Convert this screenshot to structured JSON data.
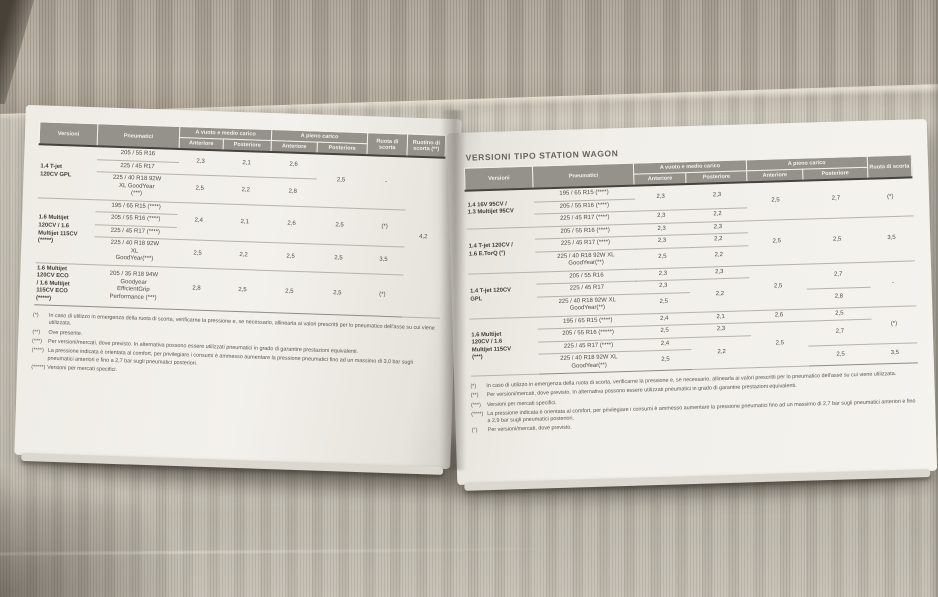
{
  "colors": {
    "table_header_bg": "#95928b",
    "page_paper": "#f1efe9",
    "fabric_light": "#ccc6ba",
    "fabric_dark_band": "#aaa194"
  },
  "left_page": {
    "table": {
      "head": [
        [
          {
            "t": "Versioni",
            "rs": 2
          },
          {
            "t": "Pneumatici",
            "rs": 2
          },
          {
            "t": "A vuoto e medio carico",
            "cs": 2
          },
          {
            "t": "A pieno carico",
            "cs": 2
          },
          {
            "t": "Ruota di scorta",
            "rs": 2
          },
          {
            "t": "Ruotino di scorta (**)",
            "rs": 2
          }
        ],
        [
          {
            "t": "Anteriore"
          },
          {
            "t": "Posteriore"
          },
          {
            "t": "Anteriore"
          },
          {
            "t": "Posteriore"
          }
        ]
      ],
      "body": [
        [
          {
            "t": "1.4 T-jet\n120CV GPL",
            "rs": 3,
            "c": "version"
          },
          {
            "t": "205 / 55 R16",
            "c": "tire"
          },
          {
            "t": "2,3",
            "rs": 2
          },
          {
            "t": "2,1",
            "rs": 2
          },
          {
            "t": "2,6",
            "rs": 2
          },
          {
            "t": "2,5",
            "rs": 3
          },
          {
            "t": "-",
            "rs": 3
          },
          {
            "t": "4,2",
            "rs": 8
          }
        ],
        [
          {
            "t": "225 / 45 R17",
            "c": "tire"
          }
        ],
        [
          {
            "t": "225 / 40 R18 92W\nXL GoodYear\n(***)",
            "c": "tire"
          },
          {
            "t": "2,5"
          },
          {
            "t": "2,2"
          },
          {
            "t": "2,8"
          }
        ],
        [
          {
            "t": "1.6 Multijet\n120CV / 1.6\nMultijet 115CV\n(*****)",
            "rs": 4,
            "c": "version"
          },
          {
            "t": "195 / 65 R15 (****)",
            "c": "tire"
          },
          {
            "t": "2,4",
            "rs": 3
          },
          {
            "t": "2,1",
            "rs": 3
          },
          {
            "t": "2,6",
            "rs": 3
          },
          {
            "t": "2,5",
            "rs": 3
          },
          {
            "t": "(*)",
            "rs": 3
          }
        ],
        [
          {
            "t": "205 / 55 R16 (****)",
            "c": "tire"
          }
        ],
        [
          {
            "t": "225 / 45 R17 (****)",
            "c": "tire"
          }
        ],
        [
          {
            "t": "225 / 40 R18 92W\nXL\nGoodYear(***)",
            "c": "tire"
          },
          {
            "t": "2,5"
          },
          {
            "t": "2,2"
          },
          {
            "t": "2,5"
          },
          {
            "t": "2,5"
          },
          {
            "t": "3,5"
          }
        ],
        [
          {
            "t": "1.6 Multijet\n120CV ECO\n/ 1.6 Multijet\n115CV ECO\n(*****)",
            "c": "version"
          },
          {
            "t": "205 / 35 R18 94W\nGoodyear\nEfficientGrip\nPerformance (***)",
            "c": "tire"
          },
          {
            "t": "2,8"
          },
          {
            "t": "2,5"
          },
          {
            "t": "2,5"
          },
          {
            "t": "2,5"
          },
          {
            "t": "(*)"
          }
        ]
      ]
    },
    "footnotes": [
      {
        "m": "(*)",
        "t": "In caso di utilizzo in emergenza della ruota di scorta, verificarne la pressione e, se necessario, allinearla ai valori prescritti per lo pneumatico dell'asse su cui viene utilizzata."
      },
      {
        "m": "(**)",
        "t": "Ove presente."
      },
      {
        "m": "(***)",
        "t": "Per versioni/mercati, dove previsto. In alternativa possono essere utilizzati pneumatici in grado di garantire prestazioni equivalenti."
      },
      {
        "m": "(****)",
        "t": "La pressione indicata è orientata al comfort, per privilegiare i consumi è ammesso aumentare la pressione pneumatici fino ad un massimo di 3,0 bar sugli pneumatici anteriori e fino a 2,7 bar sugli pneumatici posteriori."
      },
      {
        "m": "(*****)",
        "t": "Versioni per mercati specifici."
      }
    ]
  },
  "right_page": {
    "title": "VERSIONI TIPO STATION WAGON",
    "table": {
      "head": [
        [
          {
            "t": "Versioni",
            "rs": 2
          },
          {
            "t": "Pneumatici",
            "rs": 2
          },
          {
            "t": "A vuoto e medio carico",
            "cs": 2
          },
          {
            "t": "A pieno carico",
            "cs": 2
          },
          {
            "t": "Ruota di scorta",
            "rs": 2
          }
        ],
        [
          {
            "t": "Anteriore"
          },
          {
            "t": "Posteriore"
          },
          {
            "t": "Anteriore"
          },
          {
            "t": "Posteriore"
          }
        ]
      ],
      "body": [
        [
          {
            "t": "1.4 16V 95CV /\n1.3 Multijet 95CV",
            "rs": 3,
            "c": "version"
          },
          {
            "t": "195 / 65 R15 (****)",
            "c": "tire"
          },
          {
            "t": "2,3",
            "rs": 2
          },
          {
            "t": "2,3",
            "rs": 2
          },
          {
            "t": "2,5",
            "rs": 3
          },
          {
            "t": "2,7",
            "rs": 3
          },
          {
            "t": "(*)",
            "rs": 3
          }
        ],
        [
          {
            "t": "205 / 55 R16 (****)",
            "c": "tire"
          }
        ],
        [
          {
            "t": "225 / 45 R17 (****)",
            "c": "tire"
          },
          {
            "t": "2,3"
          },
          {
            "t": "2,2"
          }
        ],
        [
          {
            "t": "1.4 T-jet 120CV /\n1.6 E.TorQ (°)",
            "rs": 3,
            "c": "version"
          },
          {
            "t": "205 / 55 R16 (****)",
            "c": "tire"
          },
          {
            "t": "2,3"
          },
          {
            "t": "2,3"
          },
          {
            "t": "2,5",
            "rs": 3
          },
          {
            "t": "2,5",
            "rs": 3
          },
          {
            "t": "3,5",
            "rs": 3
          }
        ],
        [
          {
            "t": "225 / 45 R17 (****)",
            "c": "tire"
          },
          {
            "t": "2,3"
          },
          {
            "t": "2,2"
          }
        ],
        [
          {
            "t": "225 / 40 R18 92W XL\nGoodYear(**)",
            "c": "tire"
          },
          {
            "t": "2,5"
          },
          {
            "t": "2,2"
          }
        ],
        [
          {
            "t": "1.4 T-jet 120CV\nGPL",
            "rs": 3,
            "c": "version"
          },
          {
            "t": "205 / 55 R16",
            "c": "tire"
          },
          {
            "t": "2,3"
          },
          {
            "t": "2,3"
          },
          {
            "t": "2,5",
            "rs": 3
          },
          {
            "t": "2,7",
            "rs": 2
          },
          {
            "t": "-",
            "rs": 3
          }
        ],
        [
          {
            "t": "225 / 45 R17",
            "c": "tire"
          },
          {
            "t": "2,3"
          },
          {
            "t": "2,2",
            "rs": 2
          }
        ],
        [
          {
            "t": "225 / 40 R18 92W XL\nGoodYear(**)",
            "c": "tire"
          },
          {
            "t": "2,5"
          },
          {
            "t": "2,8"
          }
        ],
        [
          {
            "t": "1.6 Multijet\n120CV / 1.6\nMultijet 115CV\n(***)",
            "rs": 4,
            "c": "version"
          },
          {
            "t": "195 / 65 R15 (****)",
            "c": "tire"
          },
          {
            "t": "2,4"
          },
          {
            "t": "2,1"
          },
          {
            "t": "2,6"
          },
          {
            "t": "2,5"
          },
          {
            "t": "(*)",
            "rs": 3
          }
        ],
        [
          {
            "t": "205 / 55 R16 (*****)",
            "c": "tire"
          },
          {
            "t": "2,5"
          },
          {
            "t": "2,3"
          },
          {
            "t": "2,5",
            "rs": 3
          },
          {
            "t": "2,7",
            "rs": 2
          }
        ],
        [
          {
            "t": "225 / 45 R17 (****)",
            "c": "tire"
          },
          {
            "t": "2,4"
          },
          {
            "t": "2,2",
            "rs": 2
          }
        ],
        [
          {
            "t": "225 / 40 R18 92W XL\nGoodYear(**)",
            "c": "tire"
          },
          {
            "t": "2,5"
          },
          {
            "t": "2,5"
          },
          {
            "t": "3,5"
          }
        ]
      ]
    },
    "footnotes": [
      {
        "m": "(*)",
        "t": "In caso di utilizzo in emergenza della ruota di scorta, verificarne la pressione e, se necessario, allinearla ai valori prescritti per lo pneumatico dell'asse su cui viene utilizzata."
      },
      {
        "m": "(**)",
        "t": "Per versioni/mercati, dove previsto. In alternativa possono essere utilizzati pneumatici in grado di garantire prestazioni equivalenti."
      },
      {
        "m": "(***)",
        "t": "Versioni per mercati specifici."
      },
      {
        "m": "(****)",
        "t": "La pressione indicata è orientata al comfort, per privilegiare i consumi è ammesso aumentare la pressione pneumatici fino ad un massimo di 2,7 bar sugli pneumatici anteriori e fino a 2,9 bar sugli pneumatici posteriori."
      },
      {
        "m": "(°)",
        "t": "Per versioni/mercati, dove previsto."
      }
    ]
  }
}
